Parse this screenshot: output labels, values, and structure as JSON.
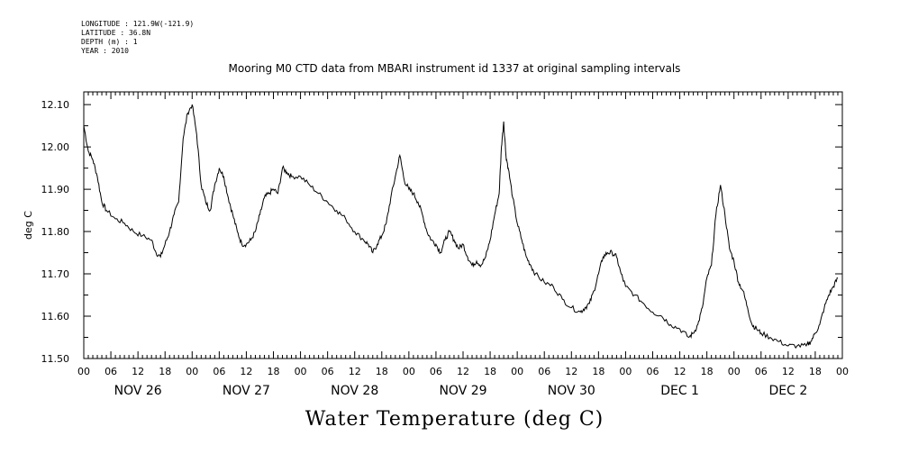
{
  "header": {
    "meta_lines": [
      "LONGITUDE : 121.9W(-121.9)",
      "LATITUDE : 36.8N",
      "DEPTH (m) : 1",
      "YEAR : 2010"
    ],
    "title": "Mooring M0 CTD data from MBARI instrument id 1337 at original sampling intervals"
  },
  "chart_data": {
    "type": "line",
    "title": "Mooring M0 CTD data from MBARI instrument id 1337 at original sampling intervals",
    "ylabel": "deg C",
    "xlabel": "Water Temperature (deg C)",
    "ylim": [
      11.5,
      12.13
    ],
    "yticks": [
      11.5,
      11.6,
      11.7,
      11.8,
      11.9,
      12.0,
      12.1
    ],
    "ytick_labels": [
      "11.50",
      "11.60",
      "11.70",
      "11.80",
      "11.90",
      "12.00",
      "12.10"
    ],
    "xlim": [
      "2010-11-26 00:00",
      "2010-12-03 00:00"
    ],
    "xtick_hour_labels": [
      "00",
      "06",
      "12",
      "18",
      "00",
      "06",
      "12",
      "18",
      "00",
      "06",
      "12",
      "18",
      "00",
      "06",
      "12",
      "18",
      "00",
      "06",
      "12",
      "18",
      "00",
      "06",
      "12",
      "18",
      "00",
      "06",
      "12",
      "18",
      "00"
    ],
    "day_labels": [
      "NOV 26",
      "NOV 27",
      "NOV 28",
      "NOV 29",
      "NOV 30",
      "DEC  1",
      "DEC  2"
    ],
    "grid": false,
    "series": [
      {
        "color": "#000000",
        "points": [
          [
            "2010-11-26 00:00",
            12.05
          ],
          [
            "2010-11-26 01:00",
            11.99
          ],
          [
            "2010-11-26 02:00",
            11.97
          ],
          [
            "2010-11-26 03:00",
            11.93
          ],
          [
            "2010-11-26 04:00",
            11.87
          ],
          [
            "2010-11-26 05:00",
            11.85
          ],
          [
            "2010-11-26 07:00",
            11.83
          ],
          [
            "2010-11-26 09:00",
            11.82
          ],
          [
            "2010-11-26 11:00",
            11.8
          ],
          [
            "2010-11-26 13:00",
            11.79
          ],
          [
            "2010-11-26 15:00",
            11.78
          ],
          [
            "2010-11-26 16:00",
            11.75
          ],
          [
            "2010-11-26 17:00",
            11.74
          ],
          [
            "2010-11-26 18:00",
            11.77
          ],
          [
            "2010-11-26 19:00",
            11.8
          ],
          [
            "2010-11-26 20:00",
            11.84
          ],
          [
            "2010-11-26 21:00",
            11.87
          ],
          [
            "2010-11-26 22:00",
            12.02
          ],
          [
            "2010-11-26 23:00",
            12.08
          ],
          [
            "2010-11-27 00:00",
            12.1
          ],
          [
            "2010-11-27 01:00",
            12.03
          ],
          [
            "2010-11-27 02:00",
            11.91
          ],
          [
            "2010-11-27 03:00",
            11.87
          ],
          [
            "2010-11-27 04:00",
            11.85
          ],
          [
            "2010-11-27 05:00",
            11.91
          ],
          [
            "2010-11-27 06:00",
            11.95
          ],
          [
            "2010-11-27 07:00",
            11.93
          ],
          [
            "2010-11-27 08:00",
            11.88
          ],
          [
            "2010-11-27 09:00",
            11.84
          ],
          [
            "2010-11-27 10:00",
            11.8
          ],
          [
            "2010-11-27 11:00",
            11.77
          ],
          [
            "2010-11-27 12:00",
            11.77
          ],
          [
            "2010-11-27 13:00",
            11.78
          ],
          [
            "2010-11-27 14:00",
            11.8
          ],
          [
            "2010-11-27 15:00",
            11.84
          ],
          [
            "2010-11-27 16:00",
            11.88
          ],
          [
            "2010-11-27 17:00",
            11.89
          ],
          [
            "2010-11-27 18:00",
            11.9
          ],
          [
            "2010-11-27 19:00",
            11.89
          ],
          [
            "2010-11-27 20:00",
            11.95
          ],
          [
            "2010-11-27 21:00",
            11.94
          ],
          [
            "2010-11-27 22:00",
            11.93
          ],
          [
            "2010-11-28 00:00",
            11.93
          ],
          [
            "2010-11-28 02:00",
            11.91
          ],
          [
            "2010-11-28 04:00",
            11.89
          ],
          [
            "2010-11-28 06:00",
            11.87
          ],
          [
            "2010-11-28 08:00",
            11.85
          ],
          [
            "2010-11-28 10:00",
            11.83
          ],
          [
            "2010-11-28 12:00",
            11.8
          ],
          [
            "2010-11-28 14:00",
            11.78
          ],
          [
            "2010-11-28 15:00",
            11.77
          ],
          [
            "2010-11-28 16:00",
            11.75
          ],
          [
            "2010-11-28 17:00",
            11.77
          ],
          [
            "2010-11-28 18:00",
            11.79
          ],
          [
            "2010-11-28 19:00",
            11.82
          ],
          [
            "2010-11-28 20:00",
            11.88
          ],
          [
            "2010-11-28 21:00",
            11.93
          ],
          [
            "2010-11-28 22:00",
            11.98
          ],
          [
            "2010-11-28 23:00",
            11.92
          ],
          [
            "2010-11-29 00:00",
            11.9
          ],
          [
            "2010-11-29 01:00",
            11.89
          ],
          [
            "2010-11-29 02:00",
            11.87
          ],
          [
            "2010-11-29 03:00",
            11.84
          ],
          [
            "2010-11-29 04:00",
            11.8
          ],
          [
            "2010-11-29 05:00",
            11.78
          ],
          [
            "2010-11-29 06:00",
            11.77
          ],
          [
            "2010-11-29 07:00",
            11.75
          ],
          [
            "2010-11-29 08:00",
            11.78
          ],
          [
            "2010-11-29 09:00",
            11.8
          ],
          [
            "2010-11-29 10:00",
            11.78
          ],
          [
            "2010-11-29 11:00",
            11.76
          ],
          [
            "2010-11-29 12:00",
            11.77
          ],
          [
            "2010-11-29 13:00",
            11.74
          ],
          [
            "2010-11-29 14:00",
            11.72
          ],
          [
            "2010-11-29 15:00",
            11.73
          ],
          [
            "2010-11-29 16:00",
            11.72
          ],
          [
            "2010-11-29 17:00",
            11.74
          ],
          [
            "2010-11-29 18:00",
            11.78
          ],
          [
            "2010-11-29 19:00",
            11.84
          ],
          [
            "2010-11-29 20:00",
            11.89
          ],
          [
            "2010-11-29 20:30",
            12.0
          ],
          [
            "2010-11-29 21:00",
            12.06
          ],
          [
            "2010-11-29 21:30",
            11.98
          ],
          [
            "2010-11-29 22:00",
            11.95
          ],
          [
            "2010-11-29 23:00",
            11.88
          ],
          [
            "2010-11-30 00:00",
            11.82
          ],
          [
            "2010-11-30 01:00",
            11.78
          ],
          [
            "2010-11-30 02:00",
            11.74
          ],
          [
            "2010-11-30 03:00",
            11.72
          ],
          [
            "2010-11-30 04:00",
            11.7
          ],
          [
            "2010-11-30 06:00",
            11.68
          ],
          [
            "2010-11-30 08:00",
            11.67
          ],
          [
            "2010-11-30 10:00",
            11.64
          ],
          [
            "2010-11-30 12:00",
            11.62
          ],
          [
            "2010-11-30 14:00",
            11.61
          ],
          [
            "2010-11-30 15:00",
            11.62
          ],
          [
            "2010-11-30 16:00",
            11.63
          ],
          [
            "2010-11-30 17:00",
            11.66
          ],
          [
            "2010-11-30 18:00",
            11.7
          ],
          [
            "2010-11-30 19:00",
            11.74
          ],
          [
            "2010-11-30 20:00",
            11.75
          ],
          [
            "2010-11-30 21:00",
            11.75
          ],
          [
            "2010-11-30 22:00",
            11.74
          ],
          [
            "2010-11-30 23:00",
            11.7
          ],
          [
            "2010-12-01 00:00",
            11.67
          ],
          [
            "2010-12-01 02:00",
            11.65
          ],
          [
            "2010-12-01 04:00",
            11.63
          ],
          [
            "2010-12-01 06:00",
            11.61
          ],
          [
            "2010-12-01 08:00",
            11.6
          ],
          [
            "2010-12-01 10:00",
            11.58
          ],
          [
            "2010-12-01 12:00",
            11.57
          ],
          [
            "2010-12-01 14:00",
            11.55
          ],
          [
            "2010-12-01 15:00",
            11.56
          ],
          [
            "2010-12-01 16:00",
            11.58
          ],
          [
            "2010-12-01 17:00",
            11.62
          ],
          [
            "2010-12-01 18:00",
            11.69
          ],
          [
            "2010-12-01 19:00",
            11.72
          ],
          [
            "2010-12-01 20:00",
            11.84
          ],
          [
            "2010-12-01 21:00",
            11.91
          ],
          [
            "2010-12-01 22:00",
            11.84
          ],
          [
            "2010-12-01 23:00",
            11.76
          ],
          [
            "2010-12-02 00:00",
            11.73
          ],
          [
            "2010-12-02 01:00",
            11.68
          ],
          [
            "2010-12-02 02:00",
            11.66
          ],
          [
            "2010-12-02 03:00",
            11.62
          ],
          [
            "2010-12-02 04:00",
            11.58
          ],
          [
            "2010-12-02 05:00",
            11.57
          ],
          [
            "2010-12-02 06:00",
            11.56
          ],
          [
            "2010-12-02 08:00",
            11.55
          ],
          [
            "2010-12-02 10:00",
            11.54
          ],
          [
            "2010-12-02 12:00",
            11.53
          ],
          [
            "2010-12-02 14:00",
            11.53
          ],
          [
            "2010-12-02 16:00",
            11.53
          ],
          [
            "2010-12-02 17:00",
            11.54
          ],
          [
            "2010-12-02 18:00",
            11.56
          ],
          [
            "2010-12-02 19:00",
            11.58
          ],
          [
            "2010-12-02 20:00",
            11.62
          ],
          [
            "2010-12-02 21:00",
            11.65
          ],
          [
            "2010-12-02 22:00",
            11.67
          ],
          [
            "2010-12-02 23:00",
            11.69
          ]
        ]
      }
    ]
  }
}
